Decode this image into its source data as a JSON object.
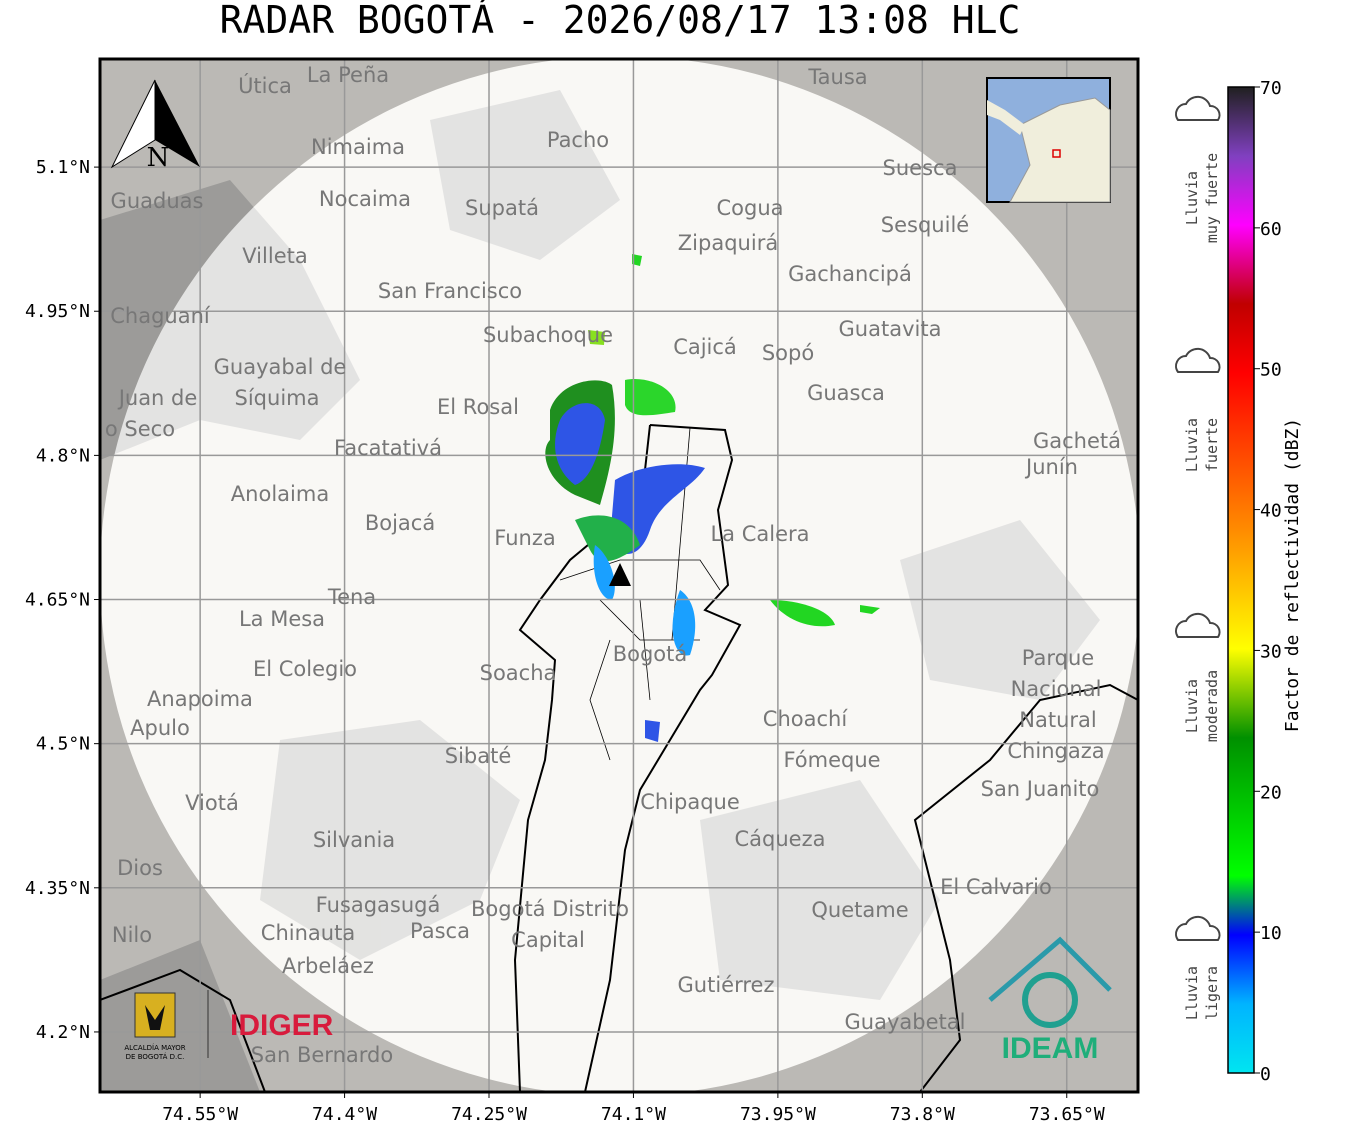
{
  "title": "RADAR BOGOTÁ - 2026/08/17 13:08 HLC",
  "map": {
    "lon_range": [
      -74.654,
      -73.576
    ],
    "lat_range": [
      4.1375,
      5.2125
    ],
    "lat_ticks": [
      {
        "value": 5.1,
        "label": "5.1°N"
      },
      {
        "value": 4.95,
        "label": "4.95°N"
      },
      {
        "value": 4.8,
        "label": "4.8°N"
      },
      {
        "value": 4.65,
        "label": "4.65°N"
      },
      {
        "value": 4.5,
        "label": "4.5°N"
      },
      {
        "value": 4.35,
        "label": "4.35°N"
      },
      {
        "value": 4.2,
        "label": "4.2°N"
      }
    ],
    "lon_ticks": [
      {
        "value": -74.55,
        "label": "74.55°W"
      },
      {
        "value": -74.4,
        "label": "74.4°W"
      },
      {
        "value": -74.25,
        "label": "74.25°W"
      },
      {
        "value": -74.1,
        "label": "74.1°W"
      },
      {
        "value": -73.95,
        "label": "73.95°W"
      },
      {
        "value": -73.8,
        "label": "73.8°W"
      },
      {
        "value": -73.65,
        "label": "73.65°W"
      }
    ],
    "north": "N",
    "places": [
      "La Peña",
      "Útica",
      "Tausa",
      "Pacho",
      "Nimaima",
      "Suesca",
      "Guaduas",
      "Nocaima",
      "Supatá",
      "Cogua",
      "Sesquilé",
      "Zipaquirá",
      "Villeta",
      "Gachancipá",
      "San Francisco",
      "Chaguaní",
      "Guatavita",
      "Subachoque",
      "Cajicá",
      "Sopó",
      "Guayabal de",
      "Síquima",
      "Guasca",
      "El Rosal",
      "Juan de",
      "o Seco",
      "Facatativá",
      "Gachetá",
      "Junín",
      "Anolaima",
      "Bojacá",
      "Funza",
      "La Calera",
      "Tena",
      "La Mesa",
      "Parque",
      "Nacional",
      "Natural",
      "Chingaza",
      "El Colegio",
      "Soacha",
      "Bogotá",
      "Anapoima",
      "Apulo",
      "Choachí",
      "Sibaté",
      "Fómeque",
      "San Juanito",
      "Viotá",
      "Chipaque",
      "Silvania",
      "Cáqueza",
      "Dios",
      "El Calvario",
      "Fusagasugá",
      "Bogotá Distrito",
      "Capital",
      "Quetame",
      "Nilo",
      "Chinauta",
      "Pasca",
      "Arbeláez",
      "Gutiérrez",
      "Guayabetal",
      "San Bernardo"
    ]
  },
  "colorbar": {
    "range": [
      0,
      70
    ],
    "ticks": [
      0,
      10,
      20,
      30,
      40,
      50,
      60,
      70
    ],
    "label": "Factor de reflectividad (dBZ)",
    "categories": [
      [
        "Lluvia",
        "muy fuerte"
      ],
      [
        "Lluvia",
        "fuerte"
      ],
      [
        "Lluvia",
        "moderada"
      ],
      [
        "Lluvia",
        "ligera"
      ]
    ]
  },
  "logos": {
    "alcaldia": [
      "ALCALDÍA MAYOR",
      "DE BOGOTÁ D.C."
    ],
    "idiger": "IDIGER",
    "ideam": "IDEAM"
  }
}
